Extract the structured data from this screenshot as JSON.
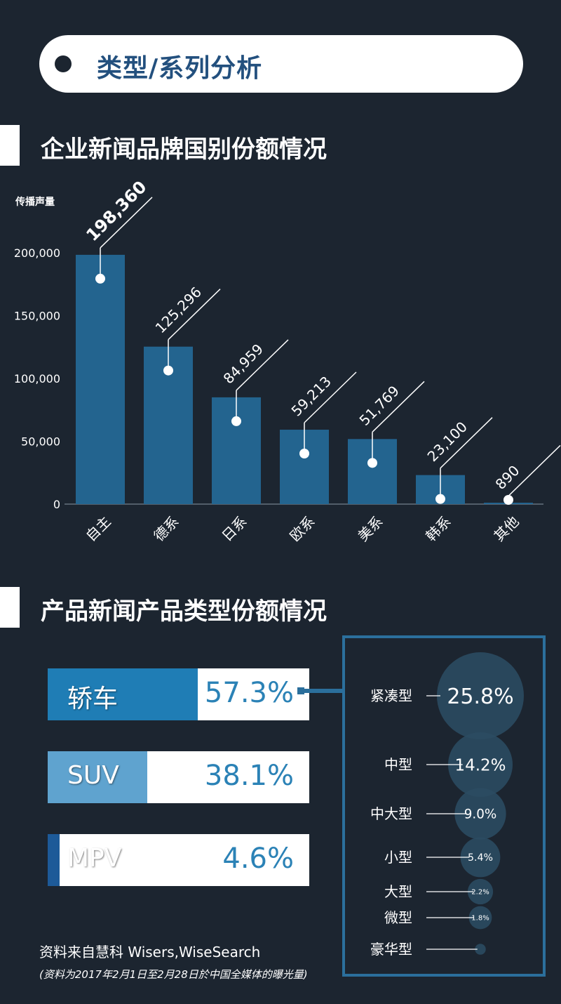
{
  "header": {
    "title": "类型/系列分析"
  },
  "section1": {
    "title": "企业新闻品牌国别份额情况"
  },
  "section2": {
    "title": "产品新闻产品类型份额情况"
  },
  "chart_data": [
    {
      "type": "bar",
      "ylabel": "传播声量",
      "ylim": [
        0,
        200000
      ],
      "yticks": [
        "0",
        "50,000",
        "100,000",
        "150,000",
        "200,000"
      ],
      "categories": [
        "自主",
        "德系",
        "日系",
        "欧系",
        "美系",
        "韩系",
        "其他"
      ],
      "values": [
        198360,
        125296,
        84959,
        59213,
        51769,
        23100,
        890
      ],
      "value_labels": [
        "198,360",
        "125,296",
        "84,959",
        "59,213",
        "51,769",
        "23,100",
        "890"
      ],
      "bar_color": "#23648f",
      "grid": false
    },
    {
      "type": "bar",
      "orientation": "horizontal",
      "categories": [
        "轿车",
        "SUV",
        "MPV"
      ],
      "values": [
        57.3,
        38.1,
        4.6
      ],
      "value_labels": [
        "57.3%",
        "38.1%",
        "4.6%"
      ],
      "colors": [
        "#1f7db5",
        "#5fa3cf",
        "#1d5a98"
      ]
    },
    {
      "type": "scatter",
      "categories": [
        "紧凑型",
        "中型",
        "中大型",
        "小型",
        "大型",
        "微型",
        "豪华型"
      ],
      "values": [
        25.8,
        14.2,
        9.0,
        5.4,
        2.2,
        1.8,
        0.4
      ],
      "value_labels": [
        "25.8%",
        "14.2%",
        "9.0%",
        "5.4%",
        "2.2%",
        "1.8%",
        ""
      ],
      "bubble_color": "#2b4b62"
    }
  ],
  "footer": {
    "source": "资料来自慧科 Wisers,WiseSearch",
    "note": "(资料为2017年2月1日至2月28日於中国全媒体的曝光量)"
  }
}
